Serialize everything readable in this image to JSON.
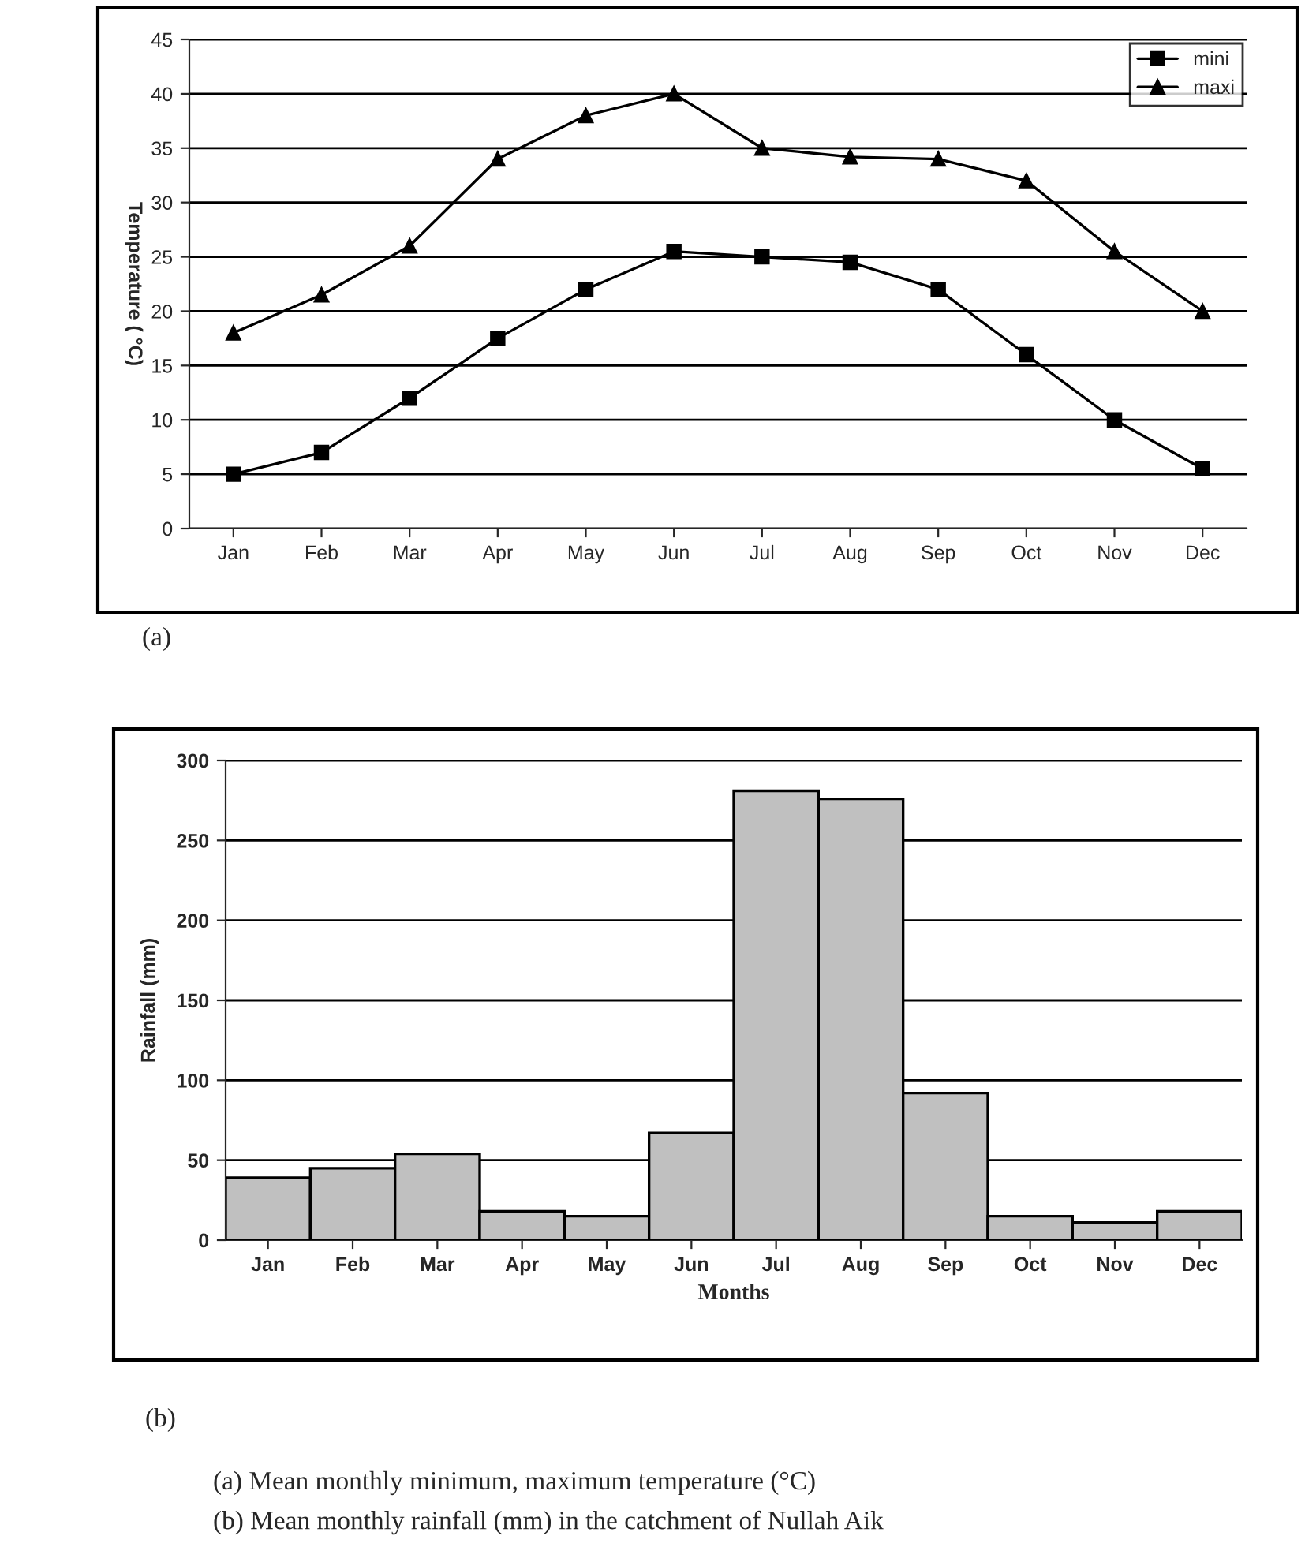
{
  "chart_data": [
    {
      "type": "line",
      "ylabel": "Temperature ( °C)",
      "categories": [
        "Jan",
        "Feb",
        "Mar",
        "Apr",
        "May",
        "Jun",
        "Jul",
        "Aug",
        "Sep",
        "Oct",
        "Nov",
        "Dec"
      ],
      "series": [
        {
          "name": "mini",
          "color": "#000000",
          "marker": "square",
          "values": [
            5,
            7,
            12,
            17.5,
            22,
            25.5,
            25,
            24.5,
            22,
            16,
            10,
            5.5
          ]
        },
        {
          "name": "maxi",
          "color": "#000000",
          "marker": "triangle",
          "values": [
            18,
            21.5,
            26,
            34,
            38,
            40,
            35,
            34.2,
            34,
            32,
            25.5,
            20
          ]
        }
      ],
      "ylim": [
        0,
        45
      ],
      "yticks": [
        0,
        5,
        10,
        15,
        20,
        25,
        30,
        35,
        40,
        45
      ],
      "grid": "y",
      "legend": "top right",
      "line_style": "solid",
      "annotations": [
        "(a)"
      ]
    },
    {
      "type": "bar",
      "ylabel": "Rainfall (mm)",
      "xlabel": "Months",
      "categories": [
        "Jan",
        "Feb",
        "Mar",
        "Apr",
        "May",
        "Jun",
        "Jul",
        "Aug",
        "Sep",
        "Oct",
        "Nov",
        "Dec"
      ],
      "values": [
        39,
        45,
        54,
        18,
        15,
        67,
        281,
        276,
        92,
        15,
        11,
        18
      ],
      "color": "#c0c0c0",
      "ylim": [
        0,
        300
      ],
      "yticks": [
        0,
        50,
        100,
        150,
        200,
        250,
        300
      ],
      "grid": "y",
      "annotations": [
        "(b)",
        "(a) Mean monthly minimum, maximum temperature (°C)",
        "(b) Mean monthly rainfall (mm) in the catchment of Nullah Aik"
      ]
    }
  ]
}
